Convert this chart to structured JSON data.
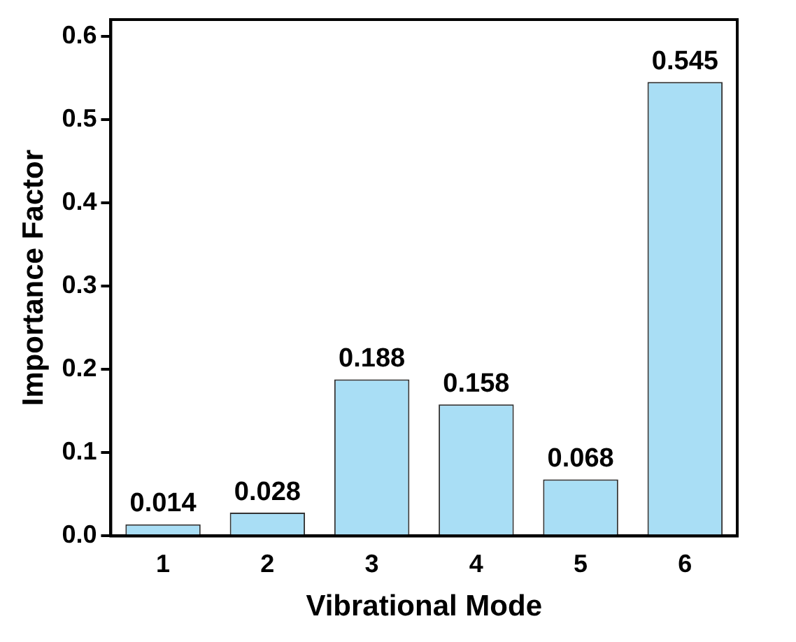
{
  "chart_data": {
    "type": "bar",
    "xlabel": "Vibrational Mode",
    "ylabel": "Importance Factor",
    "categories": [
      "1",
      "2",
      "3",
      "4",
      "5",
      "6"
    ],
    "values": [
      0.014,
      0.028,
      0.188,
      0.158,
      0.068,
      0.545
    ],
    "color": "#a9def5",
    "ylim": [
      0,
      0.62
    ],
    "yticks": [
      {
        "value": 0,
        "label": "0.0"
      },
      0.1,
      0.2,
      0.3,
      0.4,
      0.5,
      0.6
    ],
    "grid": false,
    "legend": false,
    "data_labels": true
  }
}
